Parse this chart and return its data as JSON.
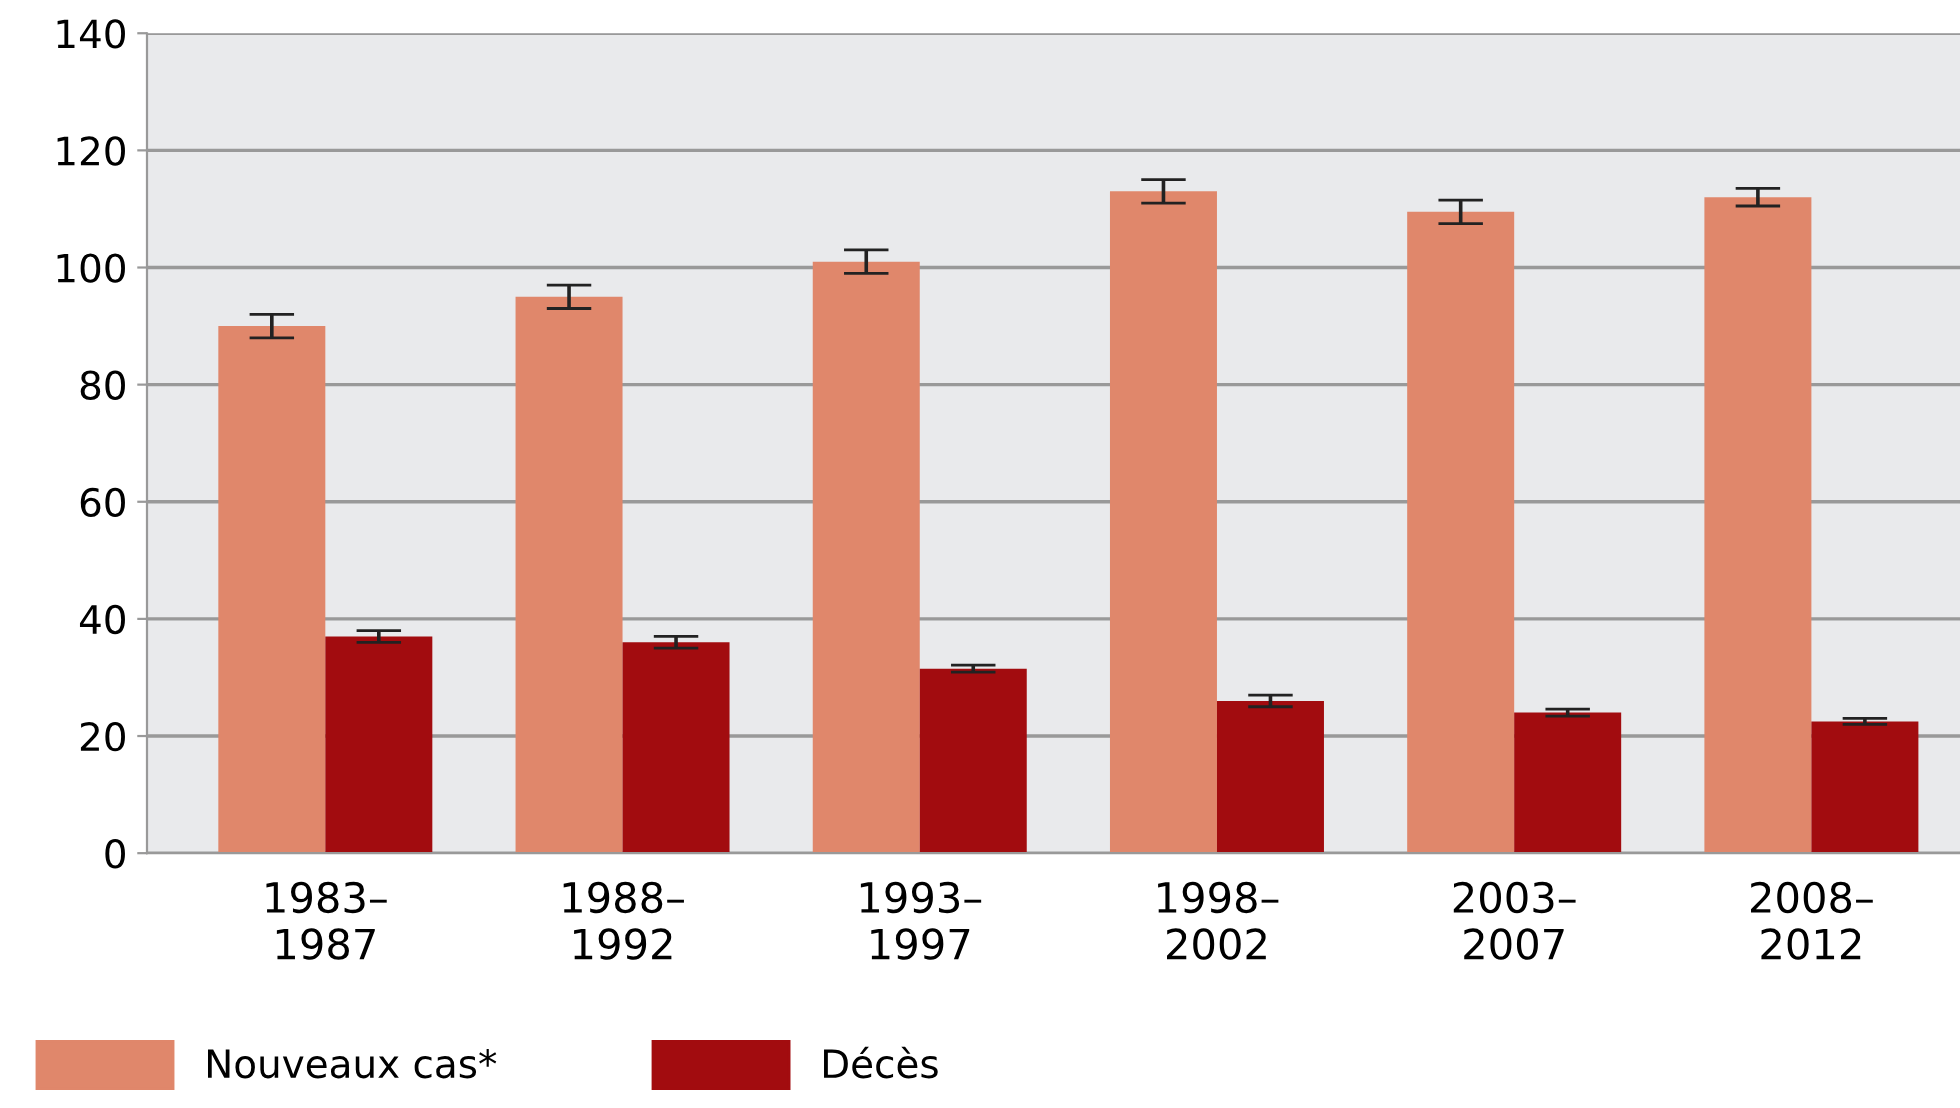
{
  "chart_data": {
    "type": "bar",
    "categories": [
      "1983–\n1987",
      "1988–\n1992",
      "1993–\n1997",
      "1998–\n2002",
      "2003–\n2007",
      "2008–\n2012"
    ],
    "series": [
      {
        "name": "Nouveaux cas*",
        "color": "#e0876b",
        "values": [
          90,
          95,
          101,
          113,
          109.5,
          112
        ],
        "errors": [
          2,
          2,
          2,
          2,
          2,
          1.5
        ]
      },
      {
        "name": "Décès",
        "color": "#a20c0f",
        "values": [
          37,
          36,
          31.5,
          26,
          24,
          22.5
        ],
        "errors": [
          1,
          1,
          0.6,
          1,
          0.6,
          0.5
        ]
      }
    ],
    "ylim": [
      0,
      140
    ],
    "yticks": [
      0,
      20,
      40,
      60,
      80,
      100,
      120,
      140
    ],
    "grid": "y",
    "legend": "bottom left"
  }
}
